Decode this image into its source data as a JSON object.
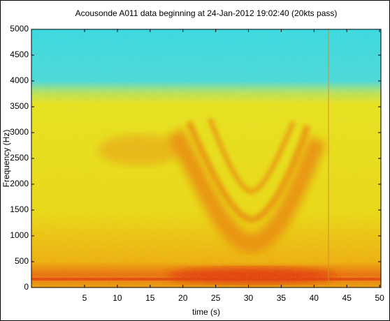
{
  "chart_data": {
    "type": "spectrogram",
    "title": "Acousonde A011 data beginning at 24-Jan-2012 19:02:40 (20kts pass)",
    "x_label": "time (s)",
    "y_label": "Frequency (Hz)",
    "xlim": [
      -3.1,
      50.2
    ],
    "xticks": [
      5,
      10,
      15,
      20,
      25,
      30,
      35,
      40,
      45,
      50
    ],
    "ylim": [
      0,
      5000
    ],
    "yticks": [
      0,
      500,
      1000,
      1500,
      2000,
      2500,
      3000,
      3500,
      4000,
      4500,
      5000
    ]
  }
}
